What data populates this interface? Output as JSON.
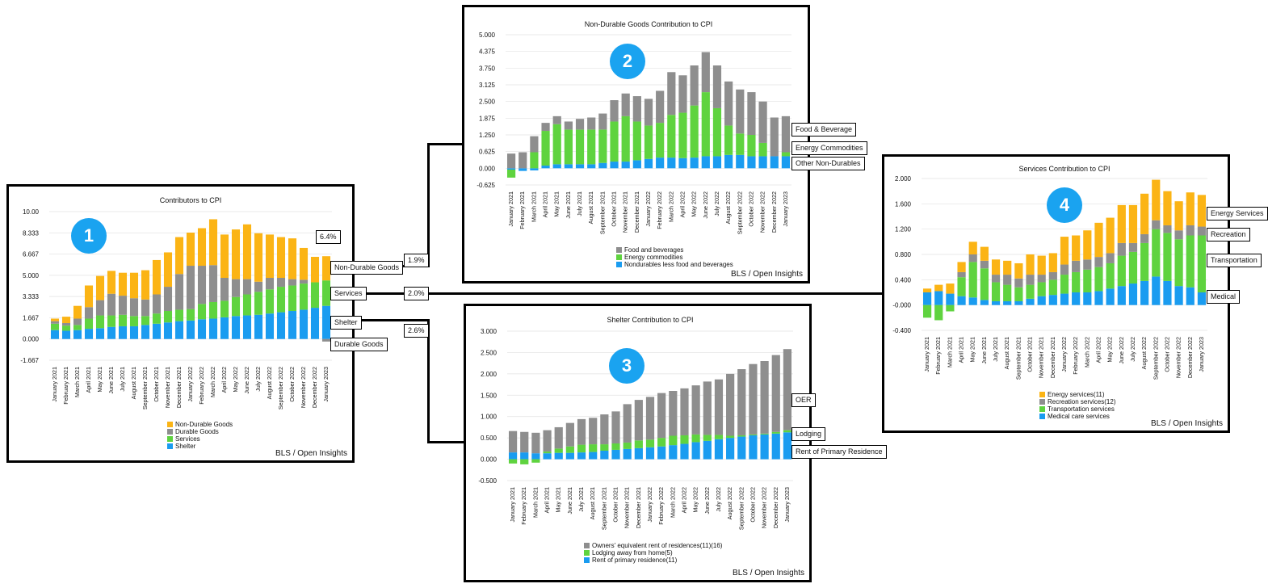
{
  "colors": {
    "yellow": "#fbb415",
    "gray": "#8e8e8e",
    "green": "#5fd33f",
    "blue": "#1a9cf0",
    "badge": "#1aa3f0"
  },
  "credit": "BLS / Open Insights",
  "callouts": {
    "nondurable": "Non-Durable Goods",
    "services": "Services",
    "shelter": "Shelter",
    "durable": "Durable Goods",
    "pct_total": "6.4%",
    "pct_nondurable": "1.9%",
    "pct_services": "2.0%",
    "pct_shelter": "2.6%",
    "food": "Food & Beverage",
    "energy_comm": "Energy Commodities",
    "other_nd": "Other Non-Durables",
    "oer": "OER",
    "lodging": "Lodging",
    "rent": "Rent of Primary Residence",
    "energy_serv": "Energy Services",
    "recreation": "Recreation",
    "transportation": "Transportation",
    "medical": "Medical"
  },
  "badges": {
    "b1": "1",
    "b2": "2",
    "b3": "3",
    "b4": "4"
  },
  "chart_data": [
    {
      "id": "c1",
      "type": "bar",
      "title": "Contributors to CPI",
      "ylim": [
        -1.667,
        10
      ],
      "yticks": [
        "10.00",
        "8.333",
        "6.667",
        "5.000",
        "3.333",
        "1.667",
        "0.000",
        "-1.667"
      ],
      "categories": [
        "January 2021",
        "February 2021",
        "March 2021",
        "April 2021",
        "May 2021",
        "June 2021",
        "July 2021",
        "August 2021",
        "September 2021",
        "October 2021",
        "November 2021",
        "December 2021",
        "January 2022",
        "February 2022",
        "March 2022",
        "April 2022",
        "May 2022",
        "June 2022",
        "July 2022",
        "August 2022",
        "September 2022",
        "October 2022",
        "November 2022",
        "December 2022",
        "January 2023"
      ],
      "series": [
        {
          "name": "Shelter",
          "color": "blue",
          "values": [
            0.7,
            0.65,
            0.7,
            0.8,
            0.85,
            0.95,
            1.0,
            1.0,
            1.1,
            1.2,
            1.3,
            1.4,
            1.45,
            1.55,
            1.6,
            1.7,
            1.8,
            1.85,
            1.9,
            2.0,
            2.1,
            2.2,
            2.3,
            2.45,
            2.6
          ]
        },
        {
          "name": "Services",
          "color": "green",
          "values": [
            0.5,
            0.4,
            0.4,
            0.8,
            1.0,
            0.9,
            0.9,
            0.8,
            0.7,
            0.8,
            0.9,
            0.9,
            0.9,
            1.2,
            1.3,
            1.3,
            1.5,
            1.65,
            1.8,
            1.9,
            2.0,
            2.0,
            2.05,
            2.0,
            2.0
          ]
        },
        {
          "name": "Durable Goods",
          "color": "gray",
          "values": [
            0.2,
            0.2,
            0.5,
            0.9,
            1.2,
            1.7,
            1.5,
            1.4,
            1.3,
            1.5,
            1.9,
            2.8,
            3.4,
            3.0,
            2.9,
            1.8,
            1.4,
            1.2,
            0.8,
            0.9,
            0.7,
            0.5,
            0.3,
            0.0,
            -0.2
          ]
        },
        {
          "name": "Non-Durable Goods",
          "color": "yellow",
          "values": [
            0.2,
            0.5,
            1.0,
            1.7,
            1.9,
            1.8,
            1.8,
            2.0,
            2.3,
            2.7,
            2.7,
            2.9,
            2.6,
            2.95,
            3.6,
            3.4,
            3.9,
            4.3,
            3.8,
            3.4,
            3.2,
            3.2,
            2.5,
            2.0,
            1.9
          ]
        }
      ],
      "legend": [
        "Non-Durable Goods",
        "Durable Goods",
        "Services",
        "Shelter"
      ],
      "legend_colors": [
        "yellow",
        "gray",
        "green",
        "blue"
      ]
    },
    {
      "id": "c2",
      "type": "bar",
      "title": "Non-Durable Goods Contribution to CPI",
      "ylim": [
        -0.625,
        5
      ],
      "yticks": [
        "5.000",
        "4.375",
        "3.750",
        "3.125",
        "2.500",
        "1.875",
        "1.250",
        "0.625",
        "0.000",
        "-0.625"
      ],
      "categories": [
        "January 2021",
        "February 2021",
        "March 2021",
        "April 2021",
        "May 2021",
        "June 2021",
        "July 2021",
        "August 2021",
        "September 2021",
        "October 2021",
        "November 2021",
        "December 2021",
        "January 2022",
        "February 2022",
        "March 2022",
        "April 2022",
        "May 2022",
        "June 2022",
        "July 2022",
        "August 2022",
        "September 2022",
        "October 2022",
        "November 2022",
        "December 2022",
        "January 2023"
      ],
      "series": [
        {
          "name": "Nondurables less food and beverages",
          "color": "blue",
          "values": [
            -0.05,
            -0.1,
            -0.08,
            0.1,
            0.15,
            0.15,
            0.15,
            0.15,
            0.2,
            0.25,
            0.25,
            0.3,
            0.35,
            0.4,
            0.4,
            0.38,
            0.4,
            0.45,
            0.45,
            0.5,
            0.5,
            0.45,
            0.45,
            0.45,
            0.45
          ]
        },
        {
          "name": "Energy commodities",
          "color": "green",
          "values": [
            -0.3,
            0.0,
            0.6,
            1.3,
            1.5,
            1.3,
            1.3,
            1.3,
            1.25,
            1.5,
            1.7,
            1.45,
            1.25,
            1.3,
            1.6,
            1.7,
            1.95,
            2.4,
            1.8,
            1.1,
            0.8,
            0.8,
            0.5,
            0.0,
            0.15
          ]
        },
        {
          "name": "Food and beverages",
          "color": "gray",
          "values": [
            0.55,
            0.6,
            0.6,
            0.3,
            0.3,
            0.3,
            0.4,
            0.45,
            0.6,
            0.8,
            0.85,
            0.95,
            1.0,
            1.2,
            1.6,
            1.4,
            1.5,
            1.5,
            1.6,
            1.65,
            1.65,
            1.6,
            1.55,
            1.45,
            1.35
          ]
        }
      ],
      "legend": [
        "Food and beverages",
        "Energy commodities",
        "Nondurables less food and beverages"
      ],
      "legend_colors": [
        "gray",
        "green",
        "blue"
      ]
    },
    {
      "id": "c3",
      "type": "bar",
      "title": "Shelter Contribution to CPI",
      "ylim": [
        -0.5,
        3
      ],
      "yticks": [
        "3.000",
        "2.500",
        "2.000",
        "1.500",
        "1.000",
        "0.500",
        "0.000",
        "-0.500"
      ],
      "categories": [
        "January 2021",
        "February 2021",
        "March 2021",
        "April 2021",
        "May 2021",
        "June 2021",
        "July 2021",
        "August 2021",
        "September 2021",
        "October 2021",
        "November 2021",
        "December 2021",
        "January 2022",
        "February 2022",
        "March 2022",
        "April 2022",
        "May 2022",
        "June 2022",
        "July 2022",
        "August 2022",
        "September 2022",
        "October 2022",
        "November 2022",
        "December 2022",
        "January 2023"
      ],
      "series": [
        {
          "name": "Rent of primary residence(11)",
          "color": "blue",
          "values": [
            0.16,
            0.16,
            0.14,
            0.14,
            0.15,
            0.15,
            0.16,
            0.17,
            0.2,
            0.22,
            0.24,
            0.26,
            0.28,
            0.3,
            0.33,
            0.36,
            0.4,
            0.43,
            0.47,
            0.5,
            0.53,
            0.56,
            0.58,
            0.6,
            0.63
          ]
        },
        {
          "name": "Lodging away from home(5)",
          "color": "green",
          "values": [
            -0.1,
            -0.12,
            -0.08,
            0.04,
            0.1,
            0.15,
            0.18,
            0.18,
            0.15,
            0.15,
            0.15,
            0.18,
            0.18,
            0.2,
            0.22,
            0.2,
            0.18,
            0.14,
            0.1,
            0.05,
            0.03,
            0.02,
            0.02,
            0.04,
            0.05
          ]
        },
        {
          "name": "Owners' equivalent rent of residences(11)(16)",
          "color": "gray",
          "values": [
            0.5,
            0.48,
            0.48,
            0.5,
            0.5,
            0.55,
            0.6,
            0.62,
            0.7,
            0.75,
            0.9,
            0.95,
            1.0,
            1.05,
            1.05,
            1.1,
            1.15,
            1.25,
            1.3,
            1.45,
            1.55,
            1.65,
            1.7,
            1.8,
            1.9
          ]
        }
      ],
      "legend": [
        "Owners' equivalent rent of residences(11)(16)",
        "Lodging away from home(5)",
        "Rent of primary residence(11)"
      ],
      "legend_colors": [
        "gray",
        "green",
        "blue"
      ]
    },
    {
      "id": "c4",
      "type": "bar",
      "title": "Services Contribution to CPI",
      "ylim": [
        -0.4,
        2
      ],
      "yticks": [
        "2.000",
        "1.600",
        "1.200",
        "0.800",
        "0.400",
        "-0.000",
        "-0.400"
      ],
      "categories": [
        "January 2021",
        "February 2021",
        "March 2021",
        "April 2021",
        "May 2021",
        "June 2021",
        "July 2021",
        "August 2021",
        "September 2021",
        "October 2021",
        "November 2021",
        "December 2021",
        "January 2022",
        "February 2022",
        "March 2022",
        "April 2022",
        "May 2022",
        "June 2022",
        "July 2022",
        "August 2022",
        "September 2022",
        "October 2022",
        "November 2022",
        "December 2022",
        "January 2023"
      ],
      "series": [
        {
          "name": "Medical care services",
          "color": "blue",
          "values": [
            0.2,
            0.22,
            0.18,
            0.14,
            0.12,
            0.08,
            0.06,
            0.06,
            0.06,
            0.1,
            0.14,
            0.16,
            0.18,
            0.2,
            0.2,
            0.22,
            0.26,
            0.3,
            0.34,
            0.38,
            0.45,
            0.38,
            0.3,
            0.28,
            0.2
          ]
        },
        {
          "name": "Transportation services",
          "color": "green",
          "values": [
            -0.2,
            -0.24,
            -0.1,
            0.3,
            0.56,
            0.5,
            0.3,
            0.26,
            0.22,
            0.22,
            0.22,
            0.24,
            0.3,
            0.32,
            0.36,
            0.38,
            0.4,
            0.48,
            0.5,
            0.6,
            0.75,
            0.76,
            0.74,
            0.82,
            0.9
          ]
        },
        {
          "name": "Recreation services(12)",
          "color": "gray",
          "values": [
            0.0,
            0.0,
            0.0,
            0.08,
            0.12,
            0.12,
            0.12,
            0.16,
            0.14,
            0.16,
            0.12,
            0.12,
            0.16,
            0.18,
            0.16,
            0.16,
            0.16,
            0.2,
            0.14,
            0.14,
            0.14,
            0.12,
            0.14,
            0.16,
            0.14
          ]
        },
        {
          "name": "Energy services(11)",
          "color": "yellow",
          "values": [
            0.06,
            0.1,
            0.16,
            0.16,
            0.2,
            0.22,
            0.24,
            0.22,
            0.24,
            0.32,
            0.3,
            0.3,
            0.44,
            0.4,
            0.46,
            0.54,
            0.56,
            0.6,
            0.6,
            0.64,
            0.64,
            0.54,
            0.46,
            0.52,
            0.5
          ]
        }
      ],
      "legend": [
        "Energy services(11)",
        "Recreation services(12)",
        "Transportation services",
        "Medical care services"
      ],
      "legend_colors": [
        "yellow",
        "gray",
        "green",
        "blue"
      ]
    }
  ]
}
